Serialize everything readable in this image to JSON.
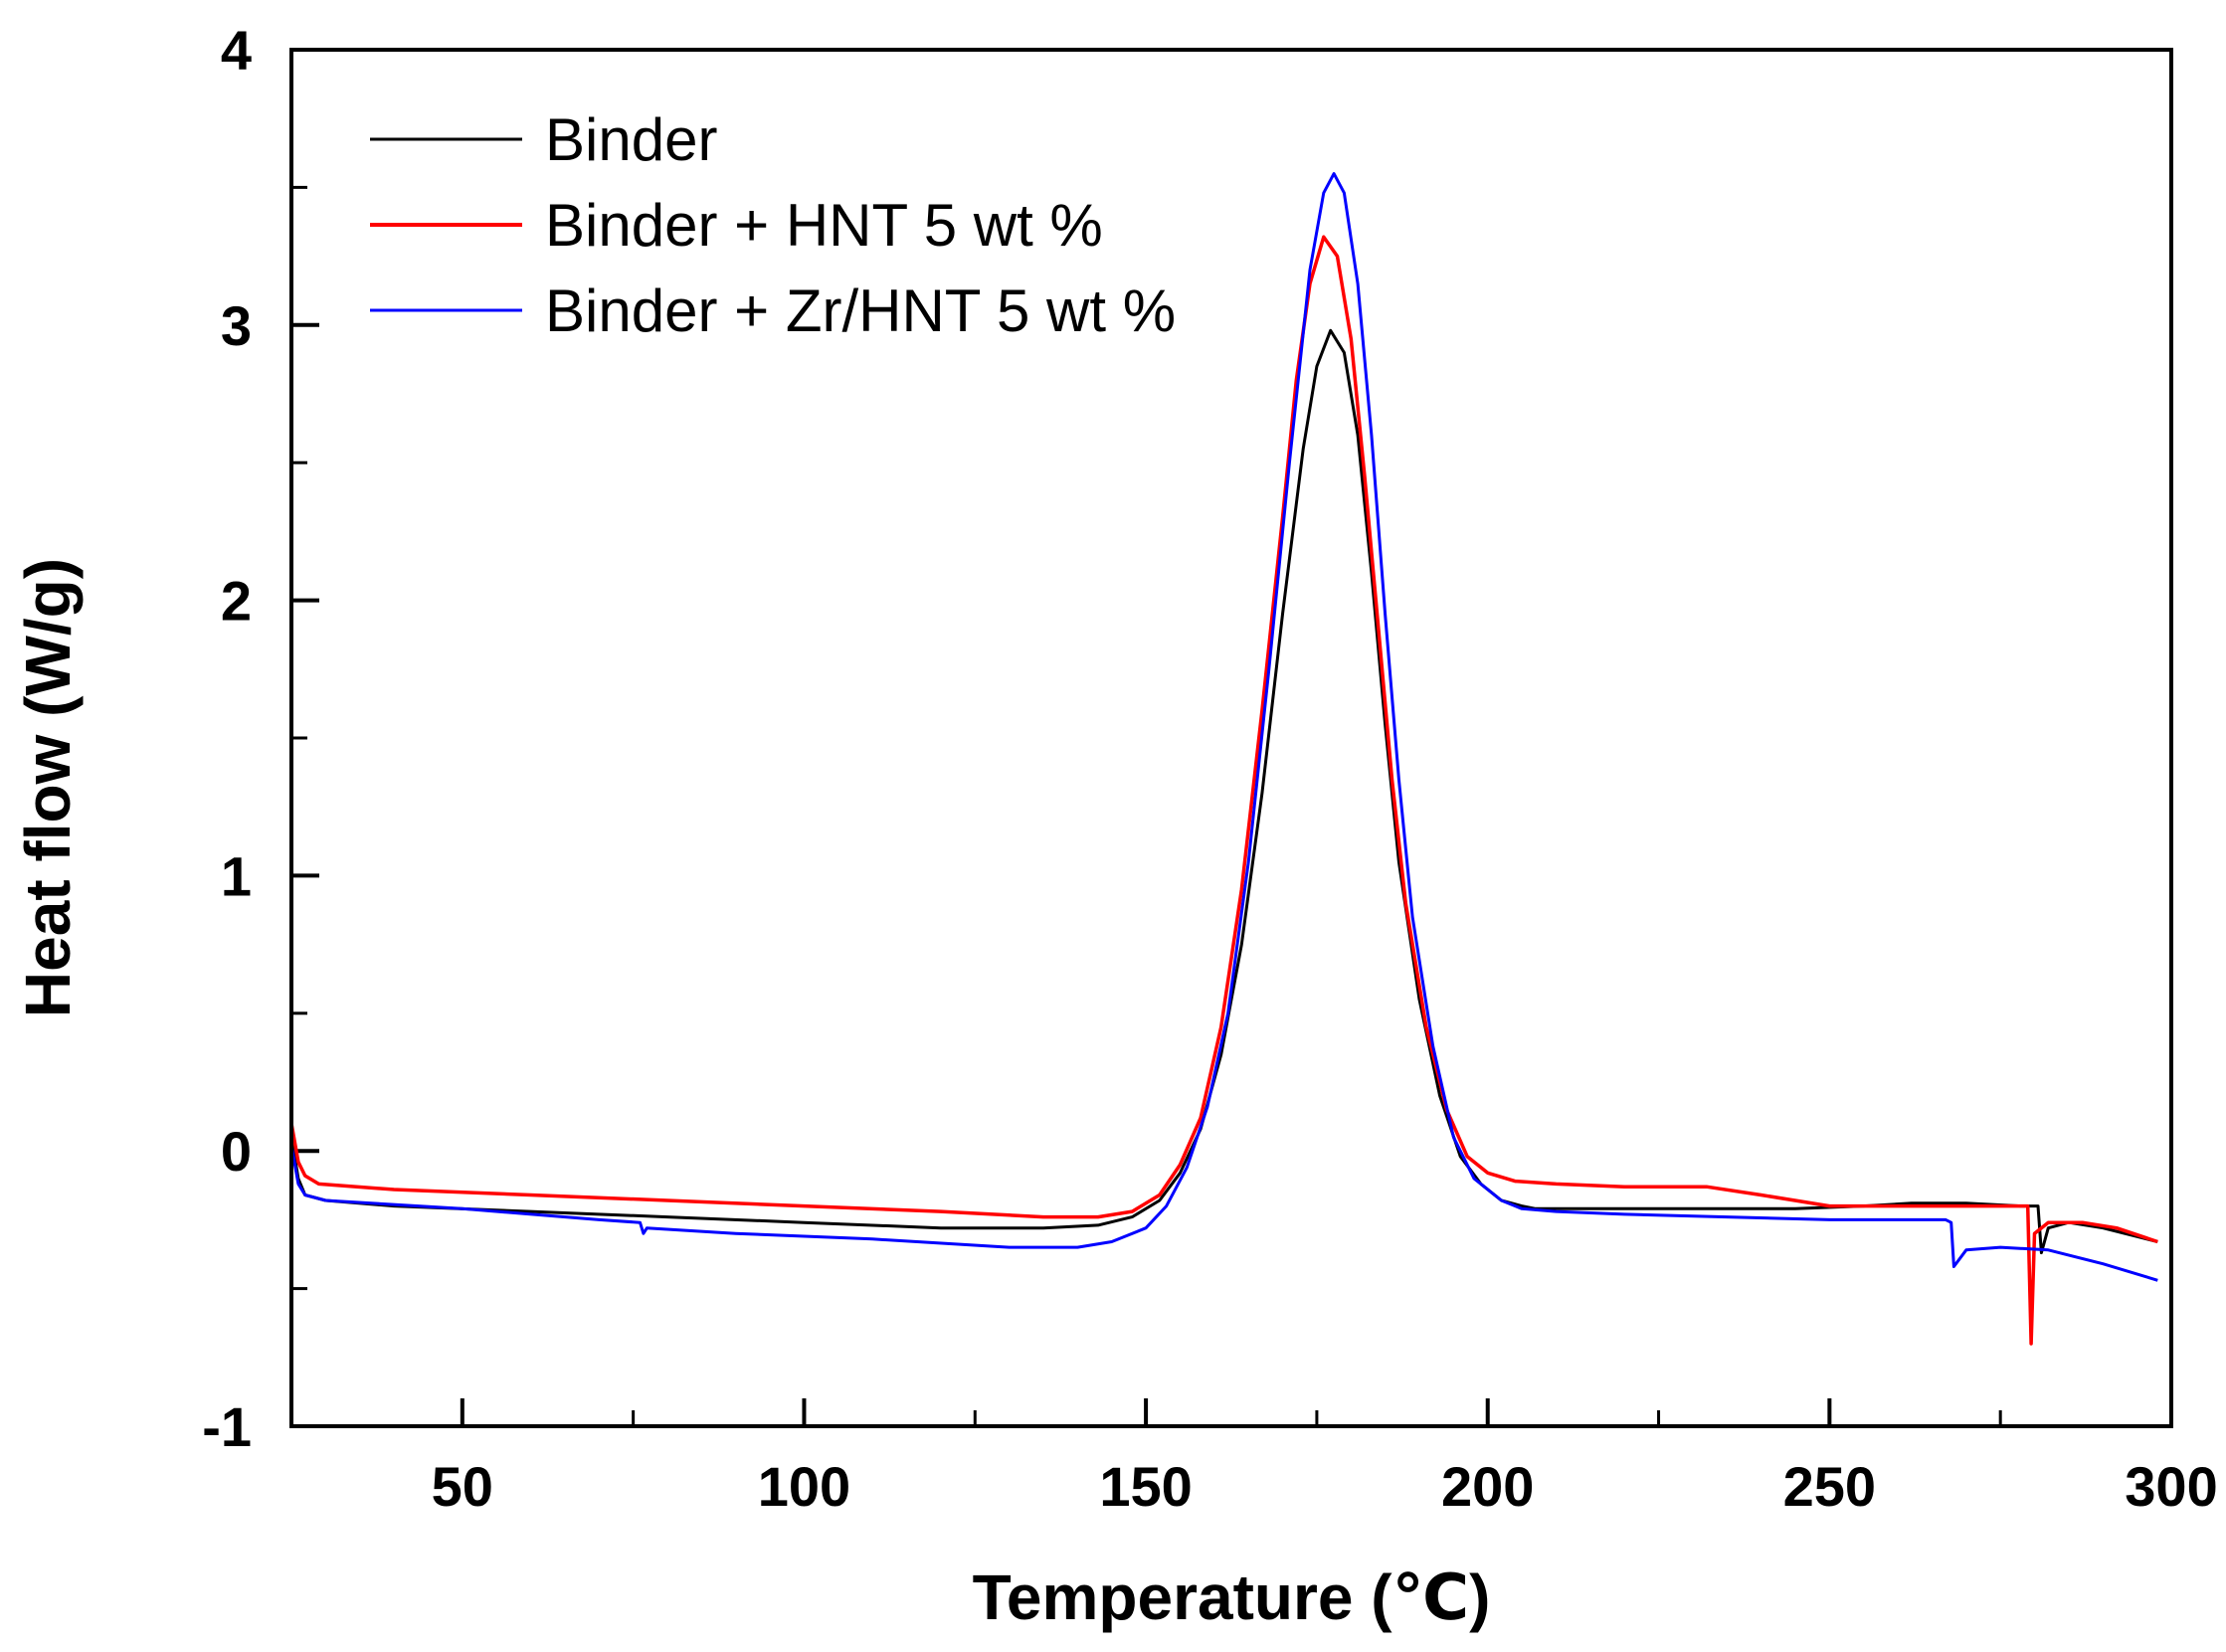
{
  "chart_data": {
    "type": "line",
    "title": "",
    "xlabel": "Temperature (℃)",
    "ylabel": "Heat flow (W/g)",
    "xlim": [
      25,
      300
    ],
    "ylim": [
      -1,
      4
    ],
    "xticks": [
      50,
      100,
      150,
      200,
      250,
      300
    ],
    "xtick_labels": [
      "50",
      "100",
      "150",
      "200",
      "250",
      "300"
    ],
    "xminor_step": 25,
    "yticks": [
      -1,
      0,
      1,
      2,
      3,
      4
    ],
    "ytick_labels": [
      "-1",
      "0",
      "1",
      "2",
      "3",
      "4"
    ],
    "yminor_step": 0.5,
    "grid": false,
    "legend_position": "top-left",
    "series": [
      {
        "name": "Binder",
        "color": "#000000",
        "points": [
          [
            25,
            0.05
          ],
          [
            26,
            -0.1
          ],
          [
            27,
            -0.16
          ],
          [
            30,
            -0.18
          ],
          [
            40,
            -0.2
          ],
          [
            60,
            -0.22
          ],
          [
            80,
            -0.24
          ],
          [
            100,
            -0.26
          ],
          [
            120,
            -0.28
          ],
          [
            135,
            -0.28
          ],
          [
            143,
            -0.27
          ],
          [
            148,
            -0.24
          ],
          [
            152,
            -0.18
          ],
          [
            155,
            -0.08
          ],
          [
            158,
            0.08
          ],
          [
            161,
            0.35
          ],
          [
            164,
            0.75
          ],
          [
            167,
            1.3
          ],
          [
            170,
            1.95
          ],
          [
            173,
            2.55
          ],
          [
            175,
            2.85
          ],
          [
            177,
            2.98
          ],
          [
            179,
            2.9
          ],
          [
            181,
            2.6
          ],
          [
            183,
            2.1
          ],
          [
            185,
            1.55
          ],
          [
            187,
            1.05
          ],
          [
            190,
            0.55
          ],
          [
            193,
            0.2
          ],
          [
            196,
            -0.02
          ],
          [
            199,
            -0.12
          ],
          [
            202,
            -0.18
          ],
          [
            205,
            -0.2
          ],
          [
            207,
            -0.21
          ],
          [
            210,
            -0.21
          ],
          [
            220,
            -0.21
          ],
          [
            230,
            -0.21
          ],
          [
            245,
            -0.21
          ],
          [
            255,
            -0.2
          ],
          [
            262,
            -0.19
          ],
          [
            270,
            -0.19
          ],
          [
            278,
            -0.2
          ],
          [
            280.5,
            -0.2
          ],
          [
            281,
            -0.37
          ],
          [
            282,
            -0.28
          ],
          [
            285,
            -0.26
          ],
          [
            290,
            -0.28
          ],
          [
            298,
            -0.33
          ]
        ]
      },
      {
        "name": "Binder + HNT 5 wt %",
        "color": "#ff0000",
        "points": [
          [
            25,
            0.1
          ],
          [
            26,
            -0.04
          ],
          [
            27,
            -0.09
          ],
          [
            29,
            -0.12
          ],
          [
            40,
            -0.14
          ],
          [
            60,
            -0.16
          ],
          [
            80,
            -0.18
          ],
          [
            100,
            -0.2
          ],
          [
            120,
            -0.22
          ],
          [
            135,
            -0.24
          ],
          [
            143,
            -0.24
          ],
          [
            148,
            -0.22
          ],
          [
            152,
            -0.16
          ],
          [
            155,
            -0.05
          ],
          [
            158,
            0.12
          ],
          [
            161,
            0.45
          ],
          [
            164,
            0.95
          ],
          [
            167,
            1.6
          ],
          [
            170,
            2.3
          ],
          [
            172,
            2.8
          ],
          [
            174,
            3.15
          ],
          [
            176,
            3.32
          ],
          [
            178,
            3.25
          ],
          [
            180,
            2.95
          ],
          [
            182,
            2.45
          ],
          [
            184,
            1.9
          ],
          [
            186,
            1.35
          ],
          [
            188,
            0.9
          ],
          [
            191,
            0.45
          ],
          [
            194,
            0.15
          ],
          [
            197,
            -0.02
          ],
          [
            200,
            -0.08
          ],
          [
            204,
            -0.11
          ],
          [
            210,
            -0.12
          ],
          [
            220,
            -0.13
          ],
          [
            232,
            -0.13
          ],
          [
            240,
            -0.16
          ],
          [
            250,
            -0.2
          ],
          [
            260,
            -0.2
          ],
          [
            270,
            -0.2
          ],
          [
            278,
            -0.2
          ],
          [
            279,
            -0.2
          ],
          [
            279.5,
            -0.7
          ],
          [
            280,
            -0.3
          ],
          [
            282,
            -0.26
          ],
          [
            287,
            -0.26
          ],
          [
            292,
            -0.28
          ],
          [
            298,
            -0.33
          ]
        ]
      },
      {
        "name": "Binder + Zr/HNT 5 wt %",
        "color": "#0000ff",
        "points": [
          [
            25,
            0.02
          ],
          [
            26,
            -0.12
          ],
          [
            27,
            -0.16
          ],
          [
            30,
            -0.18
          ],
          [
            50,
            -0.21
          ],
          [
            70,
            -0.25
          ],
          [
            76,
            -0.26
          ],
          [
            76.5,
            -0.3
          ],
          [
            77,
            -0.28
          ],
          [
            90,
            -0.3
          ],
          [
            110,
            -0.32
          ],
          [
            130,
            -0.35
          ],
          [
            140,
            -0.35
          ],
          [
            145,
            -0.33
          ],
          [
            150,
            -0.28
          ],
          [
            153,
            -0.2
          ],
          [
            156,
            -0.06
          ],
          [
            159,
            0.16
          ],
          [
            162,
            0.5
          ],
          [
            165,
            1.05
          ],
          [
            168,
            1.75
          ],
          [
            171,
            2.5
          ],
          [
            174,
            3.2
          ],
          [
            176,
            3.48
          ],
          [
            177.5,
            3.55
          ],
          [
            179,
            3.48
          ],
          [
            181,
            3.15
          ],
          [
            183,
            2.6
          ],
          [
            185,
            1.95
          ],
          [
            187,
            1.35
          ],
          [
            189,
            0.85
          ],
          [
            192,
            0.38
          ],
          [
            195,
            0.05
          ],
          [
            198,
            -0.1
          ],
          [
            202,
            -0.18
          ],
          [
            205,
            -0.21
          ],
          [
            210,
            -0.22
          ],
          [
            220,
            -0.23
          ],
          [
            235,
            -0.24
          ],
          [
            250,
            -0.25
          ],
          [
            260,
            -0.25
          ],
          [
            267,
            -0.25
          ],
          [
            267.8,
            -0.26
          ],
          [
            268.2,
            -0.42
          ],
          [
            270,
            -0.36
          ],
          [
            275,
            -0.35
          ],
          [
            282,
            -0.36
          ],
          [
            290,
            -0.41
          ],
          [
            298,
            -0.47
          ]
        ]
      }
    ]
  }
}
